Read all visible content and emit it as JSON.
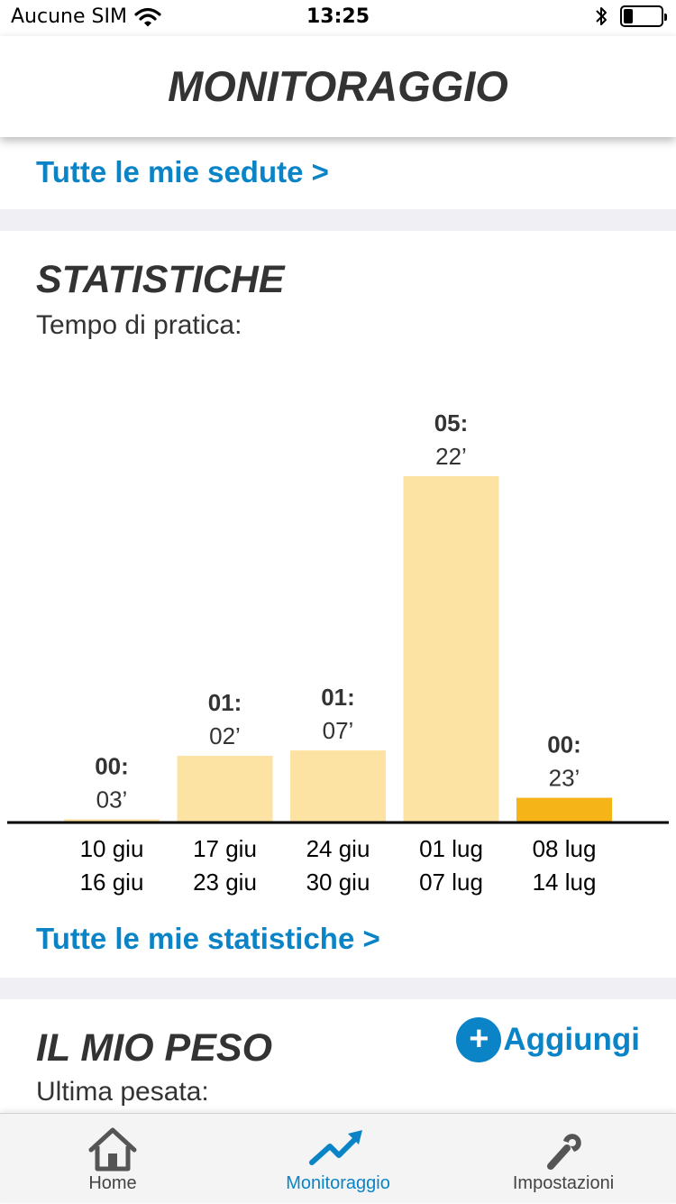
{
  "status": {
    "carrier": "Aucune SIM",
    "time": "13:25",
    "battery_level": 0.25
  },
  "header": {
    "title": "MONITORAGGIO"
  },
  "sessions": {
    "link": "Tutte le mie sedute >"
  },
  "stats": {
    "title": "STATISTICHE",
    "subtitle": "Tempo di pratica:",
    "link": "Tutte le mie statistiche >"
  },
  "chart_data": {
    "type": "bar",
    "categories": [
      [
        "10 giu",
        "16 giu"
      ],
      [
        "17 giu",
        "23 giu"
      ],
      [
        "24 giu",
        "30 giu"
      ],
      [
        "01 lug",
        "07 lug"
      ],
      [
        "08 lug",
        "14 lug"
      ]
    ],
    "values": [
      3,
      62,
      67,
      322,
      23
    ],
    "value_labels": [
      [
        "00:",
        "03’"
      ],
      [
        "01:",
        "02’"
      ],
      [
        "01:",
        "07’"
      ],
      [
        "05:",
        "22’"
      ],
      [
        "00:",
        "23’"
      ]
    ],
    "highlight_index": 4,
    "colors": {
      "bar": "#fce3a3",
      "highlight": "#f5b418",
      "axis": "#000000"
    },
    "ylim": [
      0,
      322
    ]
  },
  "weight": {
    "title": "IL MIO PESO",
    "subtitle": "Ultima pesata:",
    "add_label": "Aggiungi",
    "add_icon": "+"
  },
  "tabs": [
    {
      "label": "Home",
      "icon": "home-icon"
    },
    {
      "label": "Monitoraggio",
      "icon": "trend-arrow-icon",
      "active": true
    },
    {
      "label": "Impostazioni",
      "icon": "wrench-icon"
    }
  ],
  "colors": {
    "accent": "#0a84c6",
    "text": "#333333",
    "separator": "#efeff4"
  }
}
